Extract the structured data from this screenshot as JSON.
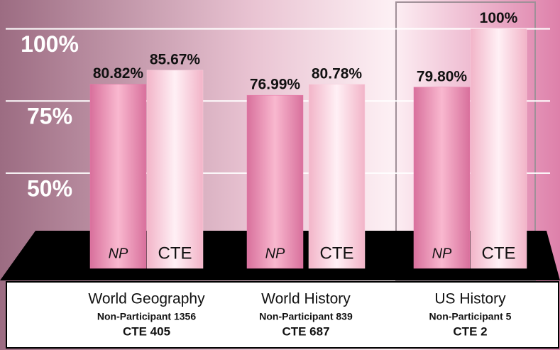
{
  "chart_data": {
    "type": "bar",
    "categories": [
      "World Geography",
      "World History",
      "US History"
    ],
    "category_details": [
      [
        "Non-Participant 1356",
        "CTE 405"
      ],
      [
        "Non-Participant 839",
        "CTE 687"
      ],
      [
        "Non-Participant 5",
        "CTE 2"
      ]
    ],
    "series": [
      {
        "name": "NP",
        "color": "#e87aa8",
        "values": [
          80.82,
          76.99,
          79.8
        ],
        "value_labels": [
          "80.82%",
          "76.99%",
          "79.80%"
        ]
      },
      {
        "name": "CTE",
        "color": "#fbd0df",
        "values": [
          85.67,
          80.78,
          100
        ],
        "value_labels": [
          "85.67%",
          "80.78%",
          "100%"
        ]
      }
    ],
    "ylim": [
      17,
      110
    ],
    "yticks": [
      {
        "value": 50,
        "label": "50%"
      },
      {
        "value": 75,
        "label": "75%"
      },
      {
        "value": 100,
        "label": "100%"
      }
    ],
    "grid": true
  }
}
